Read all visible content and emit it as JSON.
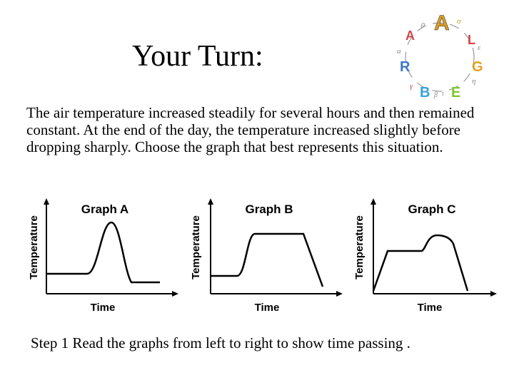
{
  "title": "Your Turn:",
  "question": "The air temperature increased steadily for several hours and then remained constant. At the end of the day, the temperature increased slightly before dropping sharply. Choose the graph that best represents this situation.",
  "logo": {
    "letters": [
      "A",
      "L",
      "G",
      "E",
      "B",
      "R",
      "A"
    ],
    "greek": [
      "ρ",
      "σ",
      "ε",
      "η",
      "ι",
      "β",
      "γ",
      "α"
    ],
    "colors": [
      "#e0a020",
      "#d94040",
      "#e8a020",
      "#7ec832",
      "#3aa0d8",
      "#3a78c8",
      "#d24848"
    ]
  },
  "graphs": [
    {
      "title": "Graph A",
      "ylabel": "Temperature",
      "xlabel": "Time"
    },
    {
      "title": "Graph B",
      "ylabel": "Temperature",
      "xlabel": "Time"
    },
    {
      "title": "Graph C",
      "ylabel": "Temperature",
      "xlabel": "Time"
    }
  ],
  "step": "Step 1 Read the graphs from left to right to show time passing ."
}
